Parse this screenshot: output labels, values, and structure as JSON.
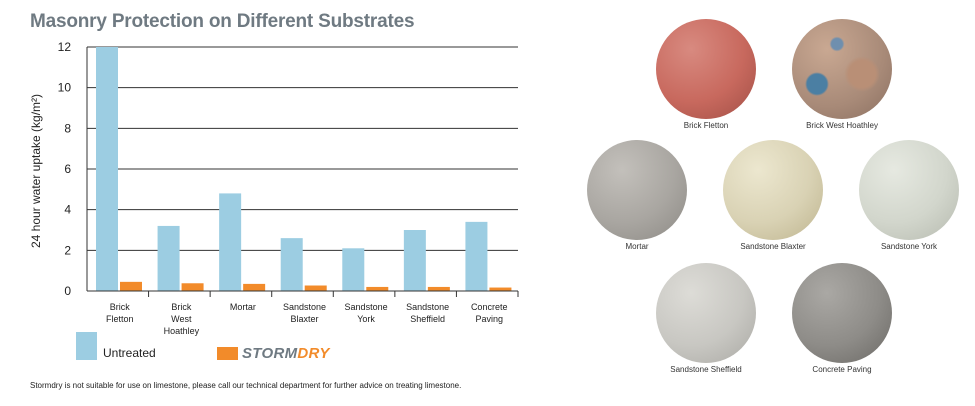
{
  "title": "Masonry Protection on Different Substrates",
  "chart_data": {
    "type": "bar",
    "ylabel": "24 hour water uptake (kg/m²)",
    "ylim": [
      0,
      12
    ],
    "yticks": [
      "0",
      "2",
      "4",
      "6",
      "8",
      "10",
      "12"
    ],
    "grid": true,
    "categories": [
      [
        "Brick",
        "Fletton"
      ],
      [
        "Brick",
        "West",
        "Hoathley"
      ],
      [
        "Mortar"
      ],
      [
        "Sandstone",
        "Blaxter"
      ],
      [
        "Sandstone",
        "York"
      ],
      [
        "Sandstone",
        "Sheffield"
      ],
      [
        "Concrete",
        "Paving"
      ]
    ],
    "series": [
      {
        "name": "Untreated",
        "color": "#9ccde2",
        "values": [
          12.0,
          3.2,
          4.8,
          2.6,
          2.1,
          3.0,
          3.4
        ]
      },
      {
        "name": "STORMDRY",
        "color": "#f28b2a",
        "values": [
          0.45,
          0.38,
          0.35,
          0.27,
          0.2,
          0.2,
          0.17
        ]
      }
    ]
  },
  "legend": {
    "untreated": "Untreated",
    "brand_part1": "STORM",
    "brand_part2": "DRY"
  },
  "footnote": "Stormdry is not suitable for use on limestone, please call our technical department for further advice on treating limestone.",
  "substrates": [
    {
      "label": "Brick Fletton",
      "base": "#c8695e",
      "light": "#d88a80",
      "dark": "#a04e45"
    },
    {
      "label": "Brick West Hoathley",
      "base": "#a88a78",
      "light": "#c9a892",
      "dark": "#4b7fa3"
    },
    {
      "label": "Mortar",
      "base": "#a9a6a1",
      "light": "#c3c0bb",
      "dark": "#8c8984"
    },
    {
      "label": "Sandstone Blaxter",
      "base": "#d9d2b4",
      "light": "#ece7cf",
      "dark": "#bdb38d"
    },
    {
      "label": "Sandstone York",
      "base": "#d2d6cc",
      "light": "#e6e9e1",
      "dark": "#b5b9ae"
    },
    {
      "label": "Sandstone Sheffield",
      "base": "#c8c7c2",
      "light": "#dddcd7",
      "dark": "#a9a8a3"
    },
    {
      "label": "Concrete Paving",
      "base": "#8e8c88",
      "light": "#aaa8a4",
      "dark": "#6a6864"
    }
  ]
}
